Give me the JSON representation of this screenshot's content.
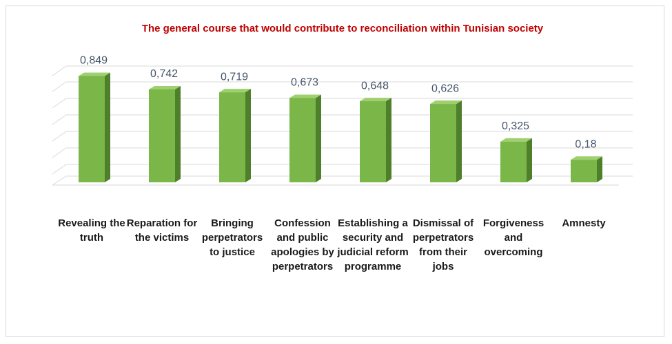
{
  "chart_data": {
    "type": "bar",
    "title": "The general course that would contribute to reconciliation within Tunisian society",
    "categories": [
      "Revealing the truth",
      "Reparation for the victims",
      "Bringing perpetrators to justice",
      "Confession and public apologies by perpetrators",
      "Establishing a security and judicial reform programme",
      "Dismissal of perpetrators from their jobs",
      "Forgiveness and overcoming",
      "Amnesty"
    ],
    "values": [
      0.849,
      0.742,
      0.719,
      0.673,
      0.648,
      0.626,
      0.325,
      0.18
    ],
    "value_labels": [
      "0,849",
      "0,742",
      "0,719",
      "0,673",
      "0,648",
      "0,626",
      "0,325",
      "0,18"
    ],
    "color": "#7ab648",
    "ylim": [
      0,
      1
    ]
  }
}
